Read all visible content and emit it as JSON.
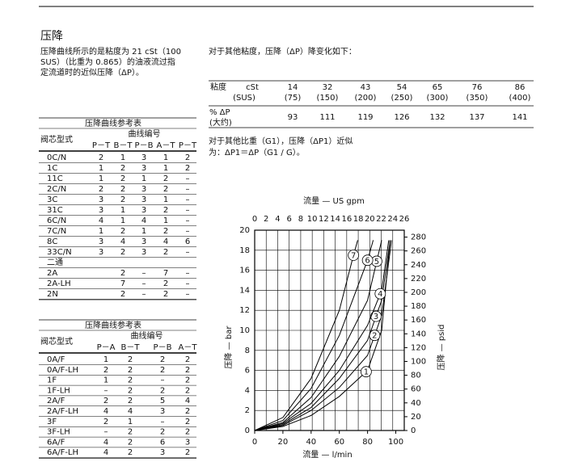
{
  "section_title": "压降",
  "intro_lines": [
    "压降曲线所示的是粘度为 21 cSt（100",
    "SUS）（比重为 0.865）的油液流过指",
    "定流道时的近似压降（ΔP）。"
  ],
  "viscosity": {
    "intro": "对于其他粘度，压降（ΔP）降变化如下：",
    "row_label": "粘度",
    "unit_lines": [
      "cSt",
      "(SUS)"
    ],
    "cst": [
      14,
      32,
      43,
      54,
      65,
      76,
      86
    ],
    "sus": [
      "(75)",
      "(150)",
      "(200)",
      "(250)",
      "(300)",
      "(350)",
      "(400)"
    ],
    "dp_label_lines": [
      "% ΔP",
      "(大约)"
    ],
    "dp": [
      93,
      111,
      119,
      126,
      132,
      137,
      141
    ]
  },
  "gravity_lines": [
    "对于其他比重（G1），压降（ΔP1）近似",
    "为：ΔP1＝ΔP（G1 / G）。"
  ],
  "table1": {
    "title": "压降曲线参考表",
    "spool_header": "阀芯型式",
    "curve_header": "曲线编号",
    "columns": [
      "P－T",
      "B－T",
      "P－B",
      "A－T",
      "P－T"
    ],
    "rows": [
      {
        "spool": "0C/N",
        "cells": [
          "2",
          "1",
          "3",
          "1",
          "2"
        ]
      },
      {
        "spool": "1C",
        "cells": [
          "1",
          "2",
          "3",
          "1",
          "2"
        ]
      },
      {
        "spool": "11C",
        "cells": [
          "1",
          "2",
          "1",
          "2",
          "–"
        ]
      },
      {
        "spool": "2C/N",
        "cells": [
          "2",
          "2",
          "3",
          "2",
          "–"
        ]
      },
      {
        "spool": "3C",
        "cells": [
          "3",
          "2",
          "3",
          "1",
          "–"
        ]
      },
      {
        "spool": "31C",
        "cells": [
          "3",
          "1",
          "3",
          "2",
          "–"
        ]
      },
      {
        "spool": "6C/N",
        "cells": [
          "4",
          "1",
          "4",
          "1",
          "–"
        ]
      },
      {
        "spool": "7C/N",
        "cells": [
          "1",
          "2",
          "1",
          "2",
          "–"
        ]
      },
      {
        "spool": "8C",
        "cells": [
          "3",
          "4",
          "3",
          "4",
          "6"
        ]
      },
      {
        "spool": "33C/N",
        "cells": [
          "3",
          "2",
          "3",
          "2",
          "–"
        ]
      }
    ],
    "two_way": {
      "label": "二通",
      "rows": [
        {
          "spool": "2A",
          "cells": [
            "2",
            "–",
            "7",
            "–"
          ]
        },
        {
          "spool": "2A-LH",
          "cells": [
            "7",
            "–",
            "2",
            "–"
          ]
        },
        {
          "spool": "2N",
          "cells": [
            "2",
            "–",
            "2",
            "–"
          ]
        }
      ]
    }
  },
  "table2": {
    "title": "压降曲线参考表",
    "spool_header": "阀芯型式",
    "curve_header": "曲线编号",
    "columns": [
      "P－A",
      "B－T",
      "P－B",
      "A－T"
    ],
    "rows": [
      {
        "spool": "0A/F",
        "cells": [
          "1",
          "2",
          "2",
          "2"
        ]
      },
      {
        "spool": "0A/F-LH",
        "cells": [
          "2",
          "2",
          "2",
          "2"
        ]
      },
      {
        "spool": "1F",
        "cells": [
          "1",
          "2",
          "–",
          "2"
        ]
      },
      {
        "spool": "1F-LH",
        "cells": [
          "–",
          "2",
          "2",
          "2"
        ]
      },
      {
        "spool": "2A/F",
        "cells": [
          "2",
          "2",
          "5",
          "4"
        ]
      },
      {
        "spool": "2A/F-LH",
        "cells": [
          "4",
          "4",
          "3",
          "2"
        ]
      },
      {
        "spool": "3F",
        "cells": [
          "2",
          "1",
          "–",
          "2"
        ]
      },
      {
        "spool": "3F-LH",
        "cells": [
          "–",
          "2",
          "2",
          "2"
        ]
      },
      {
        "spool": "6A/F",
        "cells": [
          "4",
          "2",
          "6",
          "3"
        ]
      },
      {
        "spool": "6A/F-LH",
        "cells": [
          "4",
          "2",
          "3",
          "2"
        ]
      }
    ]
  },
  "chart_data": {
    "type": "line",
    "x_label": "流量 — l/min",
    "x2_label": "流量 — US gpm",
    "y_label": "压降 — bar",
    "y2_label": "压降 — psid",
    "xlim": [
      0,
      106
    ],
    "xticks": [
      0,
      20,
      40,
      60,
      80,
      100
    ],
    "x2lim": [
      0,
      26
    ],
    "x2ticks": [
      0,
      2,
      4,
      6,
      8,
      10,
      12,
      14,
      16,
      18,
      20,
      22,
      24,
      26
    ],
    "ylim": [
      0,
      20
    ],
    "yticks": [
      0,
      2,
      4,
      6,
      8,
      10,
      12,
      14,
      16,
      18,
      20
    ],
    "y2lim": [
      0,
      290
    ],
    "y2ticks": [
      0,
      20,
      40,
      60,
      80,
      100,
      120,
      140,
      160,
      180,
      200,
      220,
      240,
      260,
      280
    ],
    "grid": true,
    "series": [
      {
        "name": "1",
        "color": "#000000",
        "x": [
          0,
          20,
          40,
          60,
          80,
          90,
          96
        ],
        "values": [
          0,
          0.4,
          1.5,
          3.4,
          6,
          10,
          19
        ]
      },
      {
        "name": "2",
        "color": "#000000",
        "x": [
          0,
          20,
          40,
          60,
          80,
          90,
          97
        ],
        "values": [
          0,
          0.5,
          2,
          4.3,
          7.5,
          11.5,
          19
        ]
      },
      {
        "name": "3",
        "color": "#000000",
        "x": [
          0,
          20,
          40,
          60,
          80,
          90,
          96
        ],
        "values": [
          0,
          0.6,
          2.3,
          5.2,
          9,
          13,
          19
        ]
      },
      {
        "name": "4",
        "color": "#000000",
        "x": [
          0,
          20,
          40,
          60,
          80,
          90,
          95
        ],
        "values": [
          0,
          0.7,
          2.7,
          6,
          10.5,
          14,
          19
        ]
      },
      {
        "name": "5",
        "color": "#000000",
        "x": [
          0,
          20,
          40,
          60,
          80,
          90
        ],
        "values": [
          0,
          0.8,
          3.3,
          7.4,
          13,
          19
        ]
      },
      {
        "name": "6",
        "color": "#000000",
        "x": [
          0,
          20,
          40,
          60,
          80,
          84
        ],
        "values": [
          0,
          1,
          4.2,
          9.5,
          17,
          19
        ]
      },
      {
        "name": "7",
        "color": "#000000",
        "x": [
          0,
          20,
          40,
          60,
          70,
          73
        ],
        "values": [
          0,
          1.3,
          5.2,
          12,
          17.5,
          19
        ]
      }
    ]
  }
}
